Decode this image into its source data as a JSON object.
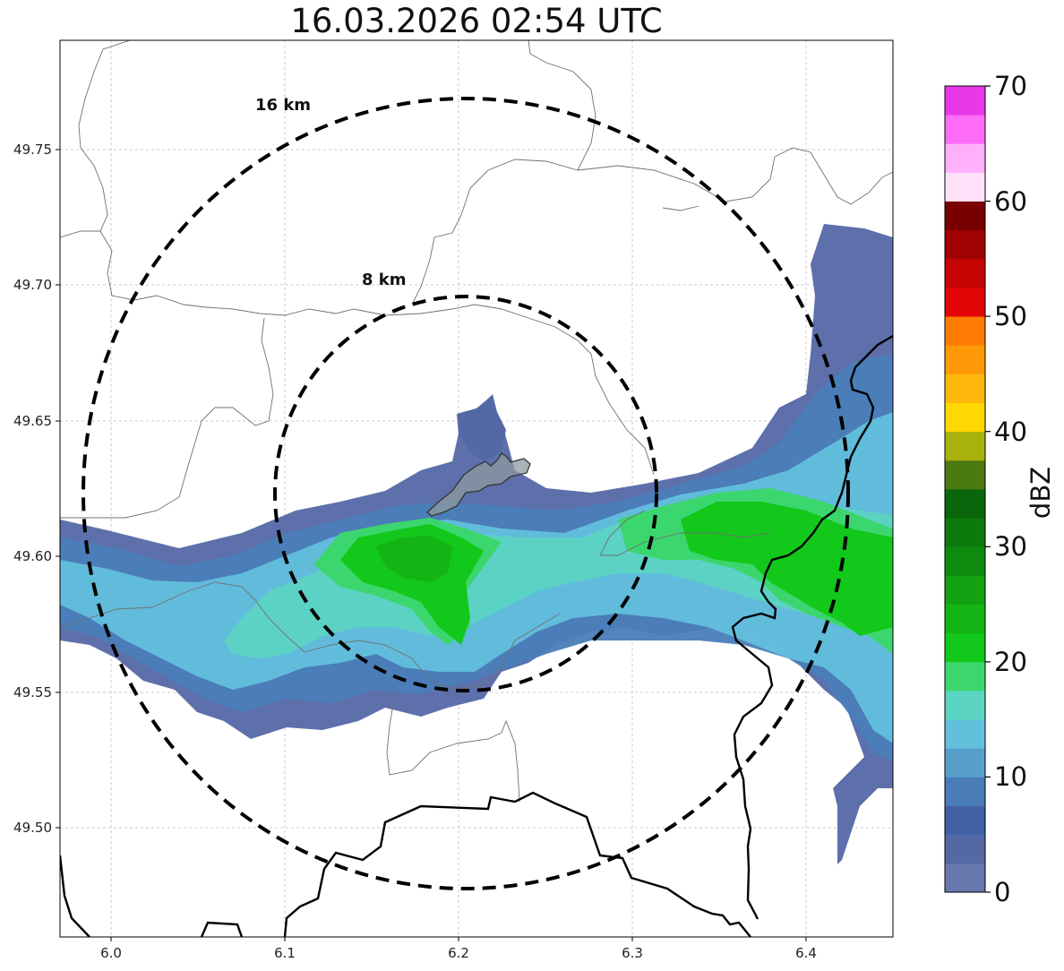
{
  "title": "16.03.2026 02:54 UTC",
  "x_ticks": [
    "6.0",
    "6.1",
    "6.2",
    "6.3",
    "6.4"
  ],
  "y_ticks": [
    "49.75",
    "49.70",
    "49.65",
    "49.60",
    "49.55",
    "49.50"
  ],
  "rings": [
    {
      "label": "16 km",
      "radius_km": 16
    },
    {
      "label": "8 km",
      "radius_km": 8
    }
  ],
  "colorbar": {
    "label": "dBZ",
    "ticks": [
      "0",
      "10",
      "20",
      "30",
      "40",
      "50",
      "60",
      "70"
    ],
    "range": [
      0,
      70
    ],
    "colors": [
      "#6878ae",
      "#5468a6",
      "#4260a4",
      "#4a7db8",
      "#58a0cc",
      "#62c0dc",
      "#5cd4c2",
      "#3cd66e",
      "#12c81a",
      "#14b414",
      "#12a212",
      "#0f8c0f",
      "#0c7a0c",
      "#0a660a",
      "#4a7a10",
      "#a9b20c",
      "#fed800",
      "#feb80c",
      "#fe9a08",
      "#fe7c04",
      "#e40606",
      "#c60404",
      "#a00202",
      "#780000",
      "#fee0f8",
      "#feb0fa",
      "#fe6cf8",
      "#e838ea"
    ]
  },
  "map": {
    "lon_range": [
      5.97,
      6.45
    ],
    "lat_range": [
      49.46,
      49.79
    ],
    "center": {
      "lon": 6.205,
      "lat": 49.623
    }
  }
}
